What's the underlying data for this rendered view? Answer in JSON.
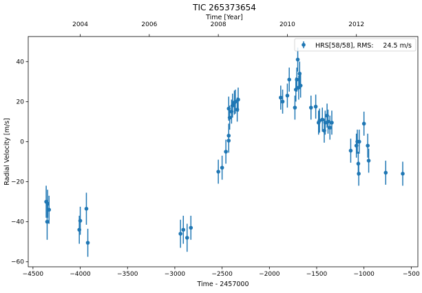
{
  "chart_data": {
    "type": "scatter",
    "title": "TIC 265373654",
    "xlabel": "Time - 2457000",
    "x2label": "Time [Year]",
    "ylabel": "Radial Velocity [m/s]",
    "xlim": [
      -4550,
      -430
    ],
    "ylim": [
      -62.5,
      52.5
    ],
    "xticks": [
      -4500,
      -4000,
      -3500,
      -3000,
      -2500,
      -2000,
      -1500,
      -1000,
      -500
    ],
    "yticks": [
      -60,
      -40,
      -20,
      0,
      20,
      40
    ],
    "year_ticks": [
      {
        "label": "2004",
        "x": -4000
      },
      {
        "label": "2006",
        "x": -3270
      },
      {
        "label": "2008",
        "x": -2540
      },
      {
        "label": "2010",
        "x": -1810
      },
      {
        "label": "2012",
        "x": -1080
      }
    ],
    "grid": false,
    "legend": {
      "placement": "top-right",
      "series_label": "HRS[58/58], RMS:",
      "rms_text": "24.5 m/s"
    },
    "colors": {
      "marker": "#1f77b4",
      "axis": "#000000"
    },
    "series": [
      {
        "name": "HRS[58/58]",
        "points": [
          {
            "x": -4360,
            "y": -30,
            "err": 8
          },
          {
            "x": -4350,
            "y": -40,
            "err": 9
          },
          {
            "x": -4345,
            "y": -31,
            "err": 7
          },
          {
            "x": -4330,
            "y": -34,
            "err": 7
          },
          {
            "x": -4010,
            "y": -44,
            "err": 7
          },
          {
            "x": -4000,
            "y": -39.5,
            "err": 7
          },
          {
            "x": -3935,
            "y": -33.5,
            "err": 8
          },
          {
            "x": -3920,
            "y": -50.5,
            "err": 7
          },
          {
            "x": -2940,
            "y": -46,
            "err": 7
          },
          {
            "x": -2910,
            "y": -44,
            "err": 7
          },
          {
            "x": -2870,
            "y": -48,
            "err": 7
          },
          {
            "x": -2830,
            "y": -43,
            "err": 6
          },
          {
            "x": -2540,
            "y": -15,
            "err": 6
          },
          {
            "x": -2500,
            "y": -13,
            "err": 6
          },
          {
            "x": -2460,
            "y": -5,
            "err": 6
          },
          {
            "x": -2430,
            "y": 0.5,
            "err": 6
          },
          {
            "x": -2430,
            "y": 3,
            "err": 6
          },
          {
            "x": -2420,
            "y": 12,
            "err": 6
          },
          {
            "x": -2430,
            "y": 16.5,
            "err": 6
          },
          {
            "x": -2400,
            "y": 15,
            "err": 6
          },
          {
            "x": -2390,
            "y": 18,
            "err": 6
          },
          {
            "x": -2370,
            "y": 19.5,
            "err": 6
          },
          {
            "x": -2360,
            "y": 20,
            "err": 6
          },
          {
            "x": -2340,
            "y": 16,
            "err": 6
          },
          {
            "x": -2330,
            "y": 21,
            "err": 6
          },
          {
            "x": -1880,
            "y": 22,
            "err": 6
          },
          {
            "x": -1860,
            "y": 20,
            "err": 6
          },
          {
            "x": -1810,
            "y": 23,
            "err": 6
          },
          {
            "x": -1790,
            "y": 31,
            "err": 6
          },
          {
            "x": -1730,
            "y": 17,
            "err": 6
          },
          {
            "x": -1720,
            "y": 26,
            "err": 6
          },
          {
            "x": -1710,
            "y": 31,
            "err": 6
          },
          {
            "x": -1700,
            "y": 41,
            "err": 6
          },
          {
            "x": -1690,
            "y": 27,
            "err": 6
          },
          {
            "x": -1680,
            "y": 34,
            "err": 6
          },
          {
            "x": -1670,
            "y": 28,
            "err": 6
          },
          {
            "x": -1510,
            "y": 17.5,
            "err": 6
          },
          {
            "x": -1480,
            "y": 9.5,
            "err": 6
          },
          {
            "x": -1470,
            "y": 10.5,
            "err": 6
          },
          {
            "x": -1440,
            "y": 11,
            "err": 6
          },
          {
            "x": -1420,
            "y": 5.5,
            "err": 6
          },
          {
            "x": -1410,
            "y": 9.5,
            "err": 6
          },
          {
            "x": -1390,
            "y": 13,
            "err": 6
          },
          {
            "x": -1380,
            "y": 10,
            "err": 6
          },
          {
            "x": -1360,
            "y": 7,
            "err": 6
          },
          {
            "x": -1340,
            "y": 9.5,
            "err": 6
          },
          {
            "x": -1140,
            "y": -4.5,
            "err": 6
          },
          {
            "x": -1080,
            "y": -2,
            "err": 6
          },
          {
            "x": -1070,
            "y": 0,
            "err": 6
          },
          {
            "x": -1060,
            "y": -11,
            "err": 6
          },
          {
            "x": -1055,
            "y": -16,
            "err": 6
          },
          {
            "x": -1050,
            "y": 0,
            "err": 6
          },
          {
            "x": -1000,
            "y": 9,
            "err": 6
          },
          {
            "x": -960,
            "y": -2,
            "err": 6
          },
          {
            "x": -950,
            "y": -9.5,
            "err": 6
          },
          {
            "x": -770,
            "y": -15.5,
            "err": 6
          },
          {
            "x": -590,
            "y": -16,
            "err": 6
          },
          {
            "x": -1560,
            "y": 17,
            "err": 6
          }
        ]
      }
    ]
  }
}
